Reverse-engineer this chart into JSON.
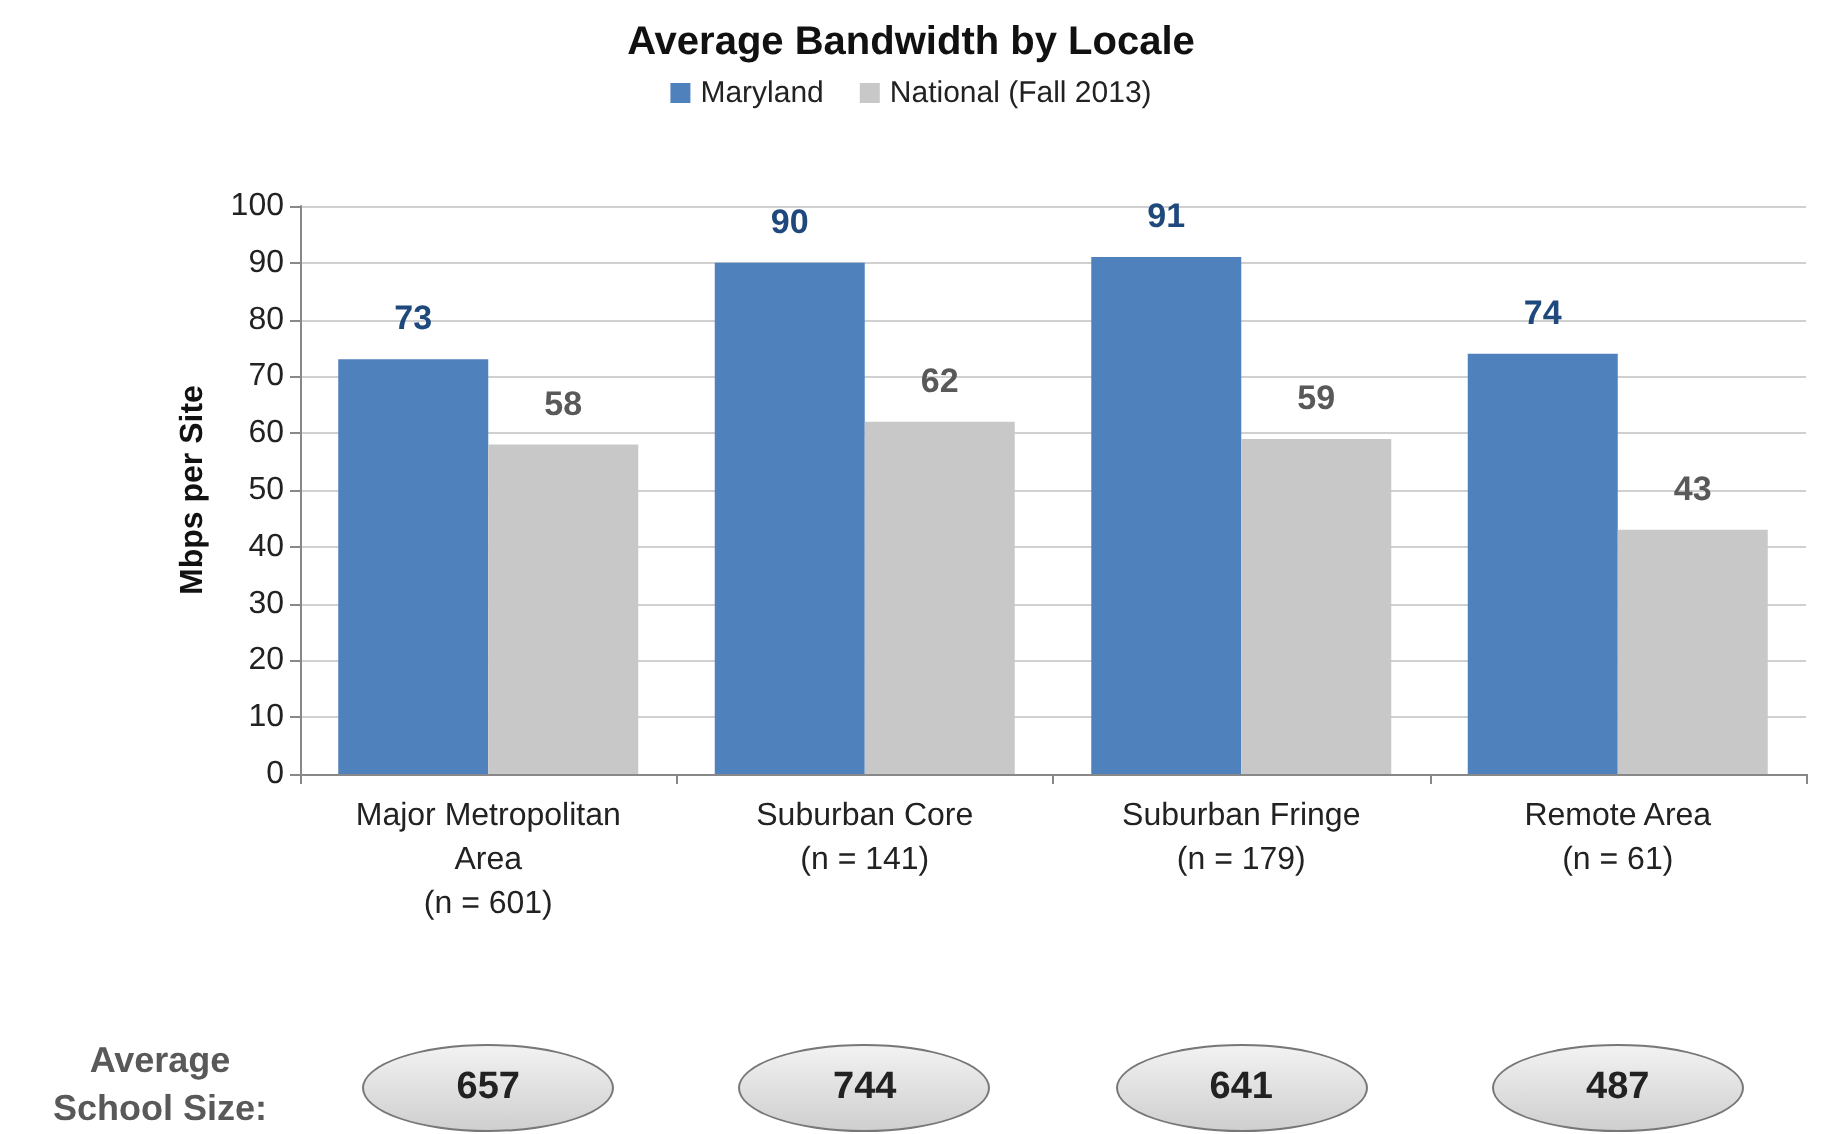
{
  "chart_data": {
    "type": "bar",
    "title": "Average Bandwidth by Locale",
    "ylabel": "Mbps per Site",
    "categories": [
      "Major Metropolitan\nArea\n(n = 601)",
      "Suburban Core\n(n = 141)",
      "Suburban Fringe\n(n = 179)",
      "Remote Area\n(n = 61)"
    ],
    "series": [
      {
        "name": "Maryland",
        "color": "#4f81bd",
        "values": [
          73,
          90,
          91,
          74
        ]
      },
      {
        "name": "National (Fall 2013)",
        "color": "#c8c8c8",
        "values": [
          58,
          62,
          59,
          43
        ]
      }
    ],
    "ylim": [
      0,
      100
    ],
    "yticks": [
      0,
      10,
      20,
      30,
      40,
      50,
      60,
      70,
      80,
      90,
      100
    ],
    "grid": "y",
    "legend": "top",
    "data_labels": true,
    "annotations": [
      "Average\nSchool Size:",
      "657",
      "744",
      "641",
      "487"
    ]
  }
}
